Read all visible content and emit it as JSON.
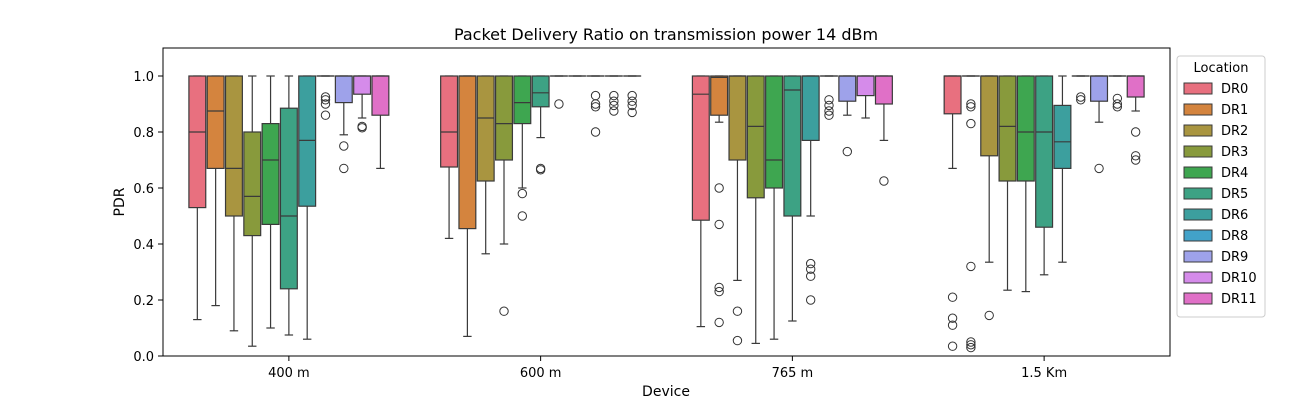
{
  "chart_data": {
    "type": "box",
    "title": "Packet Delivery Ratio on transmission power 14 dBm",
    "xlabel": "Device",
    "ylabel": "PDR",
    "ylim": [
      0,
      1.1
    ],
    "yticks": [
      "0.0",
      "0.2",
      "0.4",
      "0.6",
      "0.8",
      "1.0"
    ],
    "categories": [
      "400 m",
      "600 m",
      "765 m",
      "1.5 Km"
    ],
    "legend": {
      "title": "Location",
      "position": "right, outside plot",
      "entries": [
        "DR0",
        "DR1",
        "DR2",
        "DR3",
        "DR4",
        "DR5",
        "DR6",
        "DR8",
        "DR9",
        "DR10",
        "DR11"
      ]
    },
    "colors": [
      "#e8707f",
      "#d4843e",
      "#a99540",
      "#889a3c",
      "#3ea650",
      "#3da284",
      "#3c9f9e",
      "#42a2c9",
      "#9ea2ea",
      "#d58bea",
      "#e070c7"
    ],
    "series": [
      {
        "name": "DR0",
        "boxes": [
          {
            "q1": 0.53,
            "median": 0.8,
            "q3": 1.0,
            "whislo": 0.13,
            "whishi": 1.0,
            "fliers": []
          },
          {
            "q1": 0.675,
            "median": 0.8,
            "q3": 1.0,
            "whislo": 0.42,
            "whishi": 1.0,
            "fliers": []
          },
          {
            "q1": 0.485,
            "median": 0.935,
            "q3": 1.0,
            "whislo": 0.105,
            "whishi": 1.0,
            "fliers": []
          },
          {
            "q1": 0.865,
            "median": 1.0,
            "q3": 1.0,
            "whislo": 0.67,
            "whishi": 1.0,
            "fliers": [
              0.21,
              0.135,
              0.11,
              0.035
            ]
          }
        ]
      },
      {
        "name": "DR1",
        "boxes": [
          {
            "q1": 0.67,
            "median": 0.875,
            "q3": 1.0,
            "whislo": 0.18,
            "whishi": 1.0,
            "fliers": []
          },
          {
            "q1": 0.455,
            "median": 1.0,
            "q3": 1.0,
            "whislo": 0.07,
            "whishi": 1.0,
            "fliers": []
          },
          {
            "q1": 0.86,
            "median": 0.995,
            "q3": 1.0,
            "whislo": 0.835,
            "whishi": 1.0,
            "fliers": [
              0.6,
              0.47,
              0.245,
              0.23,
              0.12
            ]
          },
          {
            "q1": 1.0,
            "median": 1.0,
            "q3": 1.0,
            "whislo": 1.0,
            "whishi": 1.0,
            "fliers": [
              0.9,
              0.89,
              0.83,
              0.32,
              0.05,
              0.04,
              0.03
            ]
          }
        ]
      },
      {
        "name": "DR2",
        "boxes": [
          {
            "q1": 0.5,
            "median": 0.67,
            "q3": 1.0,
            "whislo": 0.09,
            "whishi": 1.0,
            "fliers": []
          },
          {
            "q1": 0.625,
            "median": 0.85,
            "q3": 1.0,
            "whislo": 0.365,
            "whishi": 1.0,
            "fliers": []
          },
          {
            "q1": 0.7,
            "median": 1.0,
            "q3": 1.0,
            "whislo": 0.27,
            "whishi": 1.0,
            "fliers": [
              0.16,
              0.055
            ]
          },
          {
            "q1": 0.715,
            "median": 1.0,
            "q3": 1.0,
            "whislo": 0.335,
            "whishi": 1.0,
            "fliers": [
              0.145
            ]
          }
        ]
      },
      {
        "name": "DR3",
        "boxes": [
          {
            "q1": 0.43,
            "median": 0.57,
            "q3": 0.8,
            "whislo": 0.035,
            "whishi": 1.0,
            "fliers": []
          },
          {
            "q1": 0.7,
            "median": 0.83,
            "q3": 1.0,
            "whislo": 0.4,
            "whishi": 1.0,
            "fliers": [
              0.16
            ]
          },
          {
            "q1": 0.565,
            "median": 0.82,
            "q3": 1.0,
            "whislo": 0.045,
            "whishi": 1.0,
            "fliers": []
          },
          {
            "q1": 0.625,
            "median": 0.82,
            "q3": 1.0,
            "whislo": 0.235,
            "whishi": 1.0,
            "fliers": []
          }
        ]
      },
      {
        "name": "DR4",
        "boxes": [
          {
            "q1": 0.47,
            "median": 0.7,
            "q3": 0.83,
            "whislo": 0.1,
            "whishi": 1.0,
            "fliers": []
          },
          {
            "q1": 0.83,
            "median": 0.905,
            "q3": 1.0,
            "whislo": 0.6,
            "whishi": 1.0,
            "fliers": [
              0.58,
              0.5
            ]
          },
          {
            "q1": 0.6,
            "median": 0.7,
            "q3": 1.0,
            "whislo": 0.06,
            "whishi": 1.0,
            "fliers": []
          },
          {
            "q1": 0.625,
            "median": 0.8,
            "q3": 1.0,
            "whislo": 0.23,
            "whishi": 1.0,
            "fliers": []
          }
        ]
      },
      {
        "name": "DR5",
        "boxes": [
          {
            "q1": 0.24,
            "median": 0.5,
            "q3": 0.885,
            "whislo": 0.075,
            "whishi": 1.0,
            "fliers": []
          },
          {
            "q1": 0.89,
            "median": 0.94,
            "q3": 1.0,
            "whislo": 0.78,
            "whishi": 1.0,
            "fliers": [
              0.67,
              0.665
            ]
          },
          {
            "q1": 0.5,
            "median": 0.95,
            "q3": 1.0,
            "whislo": 0.125,
            "whishi": 1.0,
            "fliers": []
          },
          {
            "q1": 0.46,
            "median": 0.8,
            "q3": 1.0,
            "whislo": 0.29,
            "whishi": 1.0,
            "fliers": []
          }
        ]
      },
      {
        "name": "DR6",
        "boxes": [
          {
            "q1": 0.535,
            "median": 0.77,
            "q3": 1.0,
            "whislo": 0.06,
            "whishi": 1.0,
            "fliers": []
          },
          {
            "q1": 1.0,
            "median": 1.0,
            "q3": 1.0,
            "whislo": 1.0,
            "whishi": 1.0,
            "fliers": [
              0.9
            ]
          },
          {
            "q1": 0.77,
            "median": 1.0,
            "q3": 1.0,
            "whislo": 0.5,
            "whishi": 1.0,
            "fliers": [
              0.33,
              0.31,
              0.285,
              0.2
            ]
          },
          {
            "q1": 0.67,
            "median": 0.765,
            "q3": 0.895,
            "whislo": 0.335,
            "whishi": 1.0,
            "fliers": []
          }
        ]
      },
      {
        "name": "DR8",
        "boxes": [
          {
            "q1": 1.0,
            "median": 1.0,
            "q3": 1.0,
            "whislo": 1.0,
            "whishi": 1.0,
            "fliers": [
              0.925,
              0.915,
              0.9,
              0.86
            ]
          },
          {
            "q1": 1.0,
            "median": 1.0,
            "q3": 1.0,
            "whislo": 1.0,
            "whishi": 1.0,
            "fliers": []
          },
          {
            "q1": 1.0,
            "median": 1.0,
            "q3": 1.0,
            "whislo": 1.0,
            "whishi": 1.0,
            "fliers": [
              0.915,
              0.895,
              0.875,
              0.86
            ]
          },
          {
            "q1": 1.0,
            "median": 1.0,
            "q3": 1.0,
            "whislo": 1.0,
            "whishi": 1.0,
            "fliers": [
              0.925,
              0.915
            ]
          }
        ]
      },
      {
        "name": "DR9",
        "boxes": [
          {
            "q1": 0.905,
            "median": 1.0,
            "q3": 1.0,
            "whislo": 0.79,
            "whishi": 1.0,
            "fliers": [
              0.75,
              0.67
            ]
          },
          {
            "q1": 1.0,
            "median": 1.0,
            "q3": 1.0,
            "whislo": 1.0,
            "whishi": 1.0,
            "fliers": [
              0.93,
              0.9,
              0.89,
              0.8
            ]
          },
          {
            "q1": 0.91,
            "median": 1.0,
            "q3": 1.0,
            "whislo": 0.86,
            "whishi": 1.0,
            "fliers": [
              0.73
            ]
          },
          {
            "q1": 0.91,
            "median": 1.0,
            "q3": 1.0,
            "whislo": 0.835,
            "whishi": 1.0,
            "fliers": [
              0.67
            ]
          }
        ]
      },
      {
        "name": "DR10",
        "boxes": [
          {
            "q1": 0.935,
            "median": 1.0,
            "q3": 1.0,
            "whislo": 0.85,
            "whishi": 1.0,
            "fliers": [
              0.82,
              0.815
            ]
          },
          {
            "q1": 1.0,
            "median": 1.0,
            "q3": 1.0,
            "whislo": 1.0,
            "whishi": 1.0,
            "fliers": [
              0.93,
              0.91,
              0.895,
              0.875
            ]
          },
          {
            "q1": 0.93,
            "median": 1.0,
            "q3": 1.0,
            "whislo": 0.85,
            "whishi": 1.0,
            "fliers": []
          },
          {
            "q1": 1.0,
            "median": 1.0,
            "q3": 1.0,
            "whislo": 1.0,
            "whishi": 1.0,
            "fliers": [
              0.92,
              0.9,
              0.89
            ]
          }
        ]
      },
      {
        "name": "DR11",
        "boxes": [
          {
            "q1": 0.86,
            "median": 1.0,
            "q3": 1.0,
            "whislo": 0.67,
            "whishi": 1.0,
            "fliers": []
          },
          {
            "q1": 1.0,
            "median": 1.0,
            "q3": 1.0,
            "whislo": 1.0,
            "whishi": 1.0,
            "fliers": [
              0.93,
              0.91,
              0.895,
              0.87
            ]
          },
          {
            "q1": 0.9,
            "median": 1.0,
            "q3": 1.0,
            "whislo": 0.77,
            "whishi": 1.0,
            "fliers": [
              0.625
            ]
          },
          {
            "q1": 0.925,
            "median": 1.0,
            "q3": 1.0,
            "whislo": 0.875,
            "whishi": 1.0,
            "fliers": [
              0.8,
              0.715,
              0.7
            ]
          }
        ]
      }
    ]
  }
}
